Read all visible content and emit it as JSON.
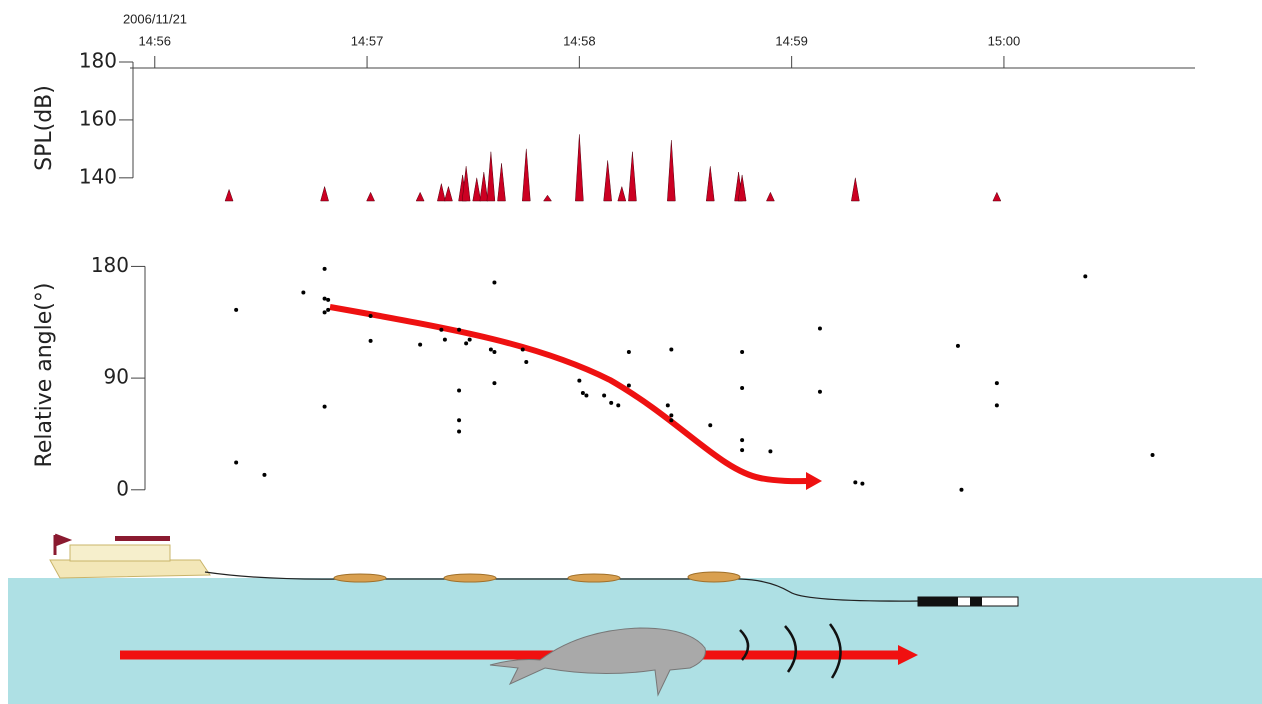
{
  "chart_data": [
    {
      "type": "bar",
      "date": "2006/11/21",
      "y_label": "SPL(dB)",
      "color": "#cc0022",
      "xlim": [
        "14:55:53",
        "15:00:54"
      ],
      "xticks": [
        "14:56",
        "14:57",
        "14:58",
        "14:59",
        "15:00"
      ],
      "ylim": [
        132,
        180
      ],
      "yticks": [
        140,
        160,
        180
      ],
      "x": [
        "14:56:21",
        "14:56:48",
        "14:57:01",
        "14:57:15",
        "14:57:21",
        "14:57:23",
        "14:57:27",
        "14:57:28",
        "14:57:31",
        "14:57:33",
        "14:57:35",
        "14:57:38",
        "14:57:45",
        "14:57:51",
        "14:58:00",
        "14:58:08",
        "14:58:12",
        "14:58:15",
        "14:58:26",
        "14:58:37",
        "14:58:45",
        "14:58:46",
        "14:58:54",
        "14:59:18",
        "14:59:58"
      ],
      "values": [
        136,
        137,
        135,
        135,
        138,
        137,
        141,
        144,
        140,
        142,
        149,
        145,
        150,
        134,
        155,
        146,
        137,
        149,
        153,
        144,
        142,
        141,
        135,
        140,
        135
      ]
    },
    {
      "type": "scatter",
      "y_label": "Relative angle(°)",
      "color": "#000000",
      "xlim": [
        "14:55:53",
        "15:00:54"
      ],
      "ylim": [
        -5,
        190
      ],
      "yticks": [
        0,
        90,
        180
      ],
      "x": [
        "14:56:23",
        "14:56:23",
        "14:56:31",
        "14:56:42",
        "14:56:48",
        "14:56:48",
        "14:56:49",
        "14:56:49",
        "14:56:48",
        "14:56:48",
        "14:57:01",
        "14:57:01",
        "14:57:15",
        "14:57:21",
        "14:57:22",
        "14:57:26",
        "14:57:28",
        "14:57:29",
        "14:57:26",
        "14:57:26",
        "14:57:26",
        "14:57:36",
        "14:57:35",
        "14:57:36",
        "14:57:36",
        "14:57:44",
        "14:57:45",
        "14:58:00",
        "14:58:01",
        "14:58:02",
        "14:58:07",
        "14:58:09",
        "14:58:11",
        "14:58:14",
        "14:58:14",
        "14:58:25",
        "14:58:26",
        "14:58:26",
        "14:58:26",
        "14:58:37",
        "14:58:46",
        "14:58:46",
        "14:58:46",
        "14:58:46",
        "14:58:54",
        "14:59:08",
        "14:59:08",
        "14:59:18",
        "14:59:20",
        "14:59:47",
        "14:59:48",
        "14:59:58",
        "14:59:58",
        "15:00:23",
        "15:00:42"
      ],
      "values": [
        145,
        22,
        12,
        159,
        178,
        154,
        153,
        145,
        143,
        67,
        140,
        120,
        117,
        129,
        121,
        129,
        118,
        121,
        80,
        56,
        47,
        167,
        113,
        111,
        86,
        113,
        103,
        88,
        78,
        76,
        76,
        70,
        68,
        111,
        84,
        68,
        60,
        56,
        113,
        52,
        111,
        82,
        40,
        32,
        31,
        130,
        79,
        6,
        5,
        116,
        0,
        86,
        68,
        172,
        28
      ]
    }
  ]
}
